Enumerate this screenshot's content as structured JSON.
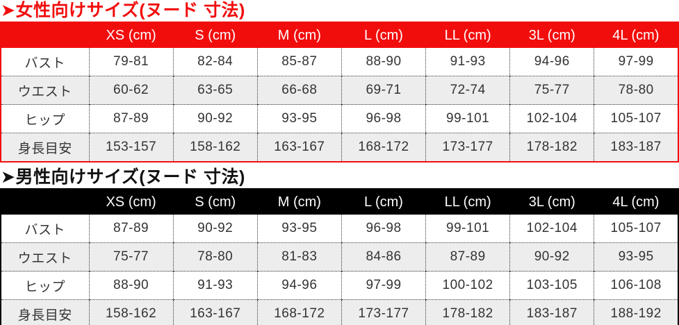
{
  "colors": {
    "women_accent": "#f20d0d",
    "men_accent": "#000000",
    "row_alt_background": "#ededed",
    "header_text": "#ffffff",
    "body_text": "#333333"
  },
  "columns": [
    "XS (cm)",
    "S (cm)",
    "M (cm)",
    "L (cm)",
    "LL (cm)",
    "3L (cm)",
    "4L (cm)"
  ],
  "sections": [
    {
      "id": "women",
      "title": "➤女性向けサイズ(ヌード 寸法)",
      "rows": [
        {
          "label": "バスト",
          "values": [
            "79-81",
            "82-84",
            "85-87",
            "88-90",
            "91-93",
            "94-96",
            "97-99"
          ]
        },
        {
          "label": "ウエスト",
          "values": [
            "60-62",
            "63-65",
            "66-68",
            "69-71",
            "72-74",
            "75-77",
            "78-80"
          ]
        },
        {
          "label": "ヒップ",
          "values": [
            "87-89",
            "90-92",
            "93-95",
            "96-98",
            "99-101",
            "102-104",
            "105-107"
          ]
        },
        {
          "label": "身長目安",
          "values": [
            "153-157",
            "158-162",
            "163-167",
            "168-172",
            "173-177",
            "178-182",
            "183-187"
          ]
        }
      ]
    },
    {
      "id": "men",
      "title": "➤男性向けサイズ(ヌード 寸法)",
      "rows": [
        {
          "label": "バスト",
          "values": [
            "87-89",
            "90-92",
            "93-95",
            "96-98",
            "99-101",
            "102-104",
            "105-107"
          ]
        },
        {
          "label": "ウエスト",
          "values": [
            "75-77",
            "78-80",
            "81-83",
            "84-86",
            "87-89",
            "90-92",
            "93-95"
          ]
        },
        {
          "label": "ヒップ",
          "values": [
            "88-90",
            "91-93",
            "94-96",
            "97-99",
            "100-102",
            "103-105",
            "106-108"
          ]
        },
        {
          "label": "身長目安",
          "values": [
            "158-162",
            "163-167",
            "168-172",
            "173-177",
            "178-182",
            "183-187",
            "188-192"
          ]
        }
      ]
    }
  ]
}
